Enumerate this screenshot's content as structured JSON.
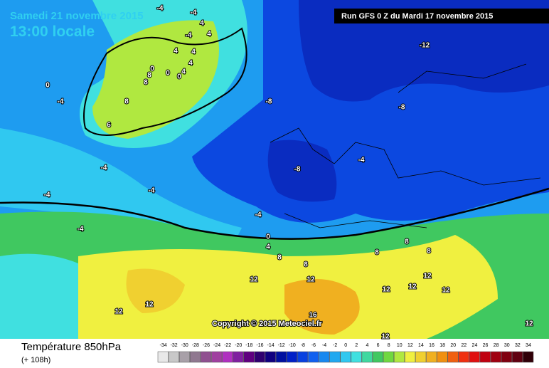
{
  "map": {
    "date": "Samedi 21 novembre 2015",
    "time": "13:00 locale",
    "run": "Run GFS 0 Z du Mardi 17 novembre 2015",
    "copyright": "Copyright © 2015 Meteociel.fr",
    "contour_labels": [
      -4,
      -4,
      4,
      -4,
      4,
      4,
      4,
      4,
      0,
      0,
      4,
      8,
      0,
      8,
      -12,
      0,
      -4,
      -8,
      8,
      -8,
      6,
      -4,
      -4,
      -8,
      -4,
      -4,
      -4,
      -4,
      0,
      4,
      8,
      8,
      12,
      12,
      8,
      12,
      12,
      12,
      16,
      12,
      12,
      12,
      12,
      12,
      8,
      8
    ]
  },
  "legend": {
    "title": "Température 850hPa",
    "lead": "(+ 108h)",
    "items": [
      {
        "value": -34,
        "color": "#e8e8e8"
      },
      {
        "value": -32,
        "color": "#c8c8c8"
      },
      {
        "value": -30,
        "color": "#a8a0a8"
      },
      {
        "value": -28,
        "color": "#907890"
      },
      {
        "value": -26,
        "color": "#905090"
      },
      {
        "value": -24,
        "color": "#a040a0"
      },
      {
        "value": -22,
        "color": "#b030c0"
      },
      {
        "value": -20,
        "color": "#8020a0"
      },
      {
        "value": -18,
        "color": "#600080"
      },
      {
        "value": -16,
        "color": "#300070"
      },
      {
        "value": -14,
        "color": "#100080"
      },
      {
        "value": -12,
        "color": "#0010a0"
      },
      {
        "value": -10,
        "color": "#0020c8"
      },
      {
        "value": -8,
        "color": "#0840e0"
      },
      {
        "value": -6,
        "color": "#1060f0"
      },
      {
        "value": -4,
        "color": "#1888f0"
      },
      {
        "value": -2,
        "color": "#20a8f0"
      },
      {
        "value": 0,
        "color": "#30c8f0"
      },
      {
        "value": 2,
        "color": "#40e0e0"
      },
      {
        "value": 4,
        "color": "#40d8a0"
      },
      {
        "value": 6,
        "color": "#40c860"
      },
      {
        "value": 8,
        "color": "#70d840"
      },
      {
        "value": 10,
        "color": "#b0e840"
      },
      {
        "value": 12,
        "color": "#f0f040"
      },
      {
        "value": 14,
        "color": "#f0d030"
      },
      {
        "value": 16,
        "color": "#f0b020"
      },
      {
        "value": 18,
        "color": "#f09010"
      },
      {
        "value": 20,
        "color": "#f06010"
      },
      {
        "value": 22,
        "color": "#f03010"
      },
      {
        "value": 24,
        "color": "#e01010"
      },
      {
        "value": 26,
        "color": "#c00010"
      },
      {
        "value": 28,
        "color": "#a00010"
      },
      {
        "value": 30,
        "color": "#800010"
      },
      {
        "value": 32,
        "color": "#600010"
      },
      {
        "value": 34,
        "color": "#300008"
      }
    ]
  }
}
